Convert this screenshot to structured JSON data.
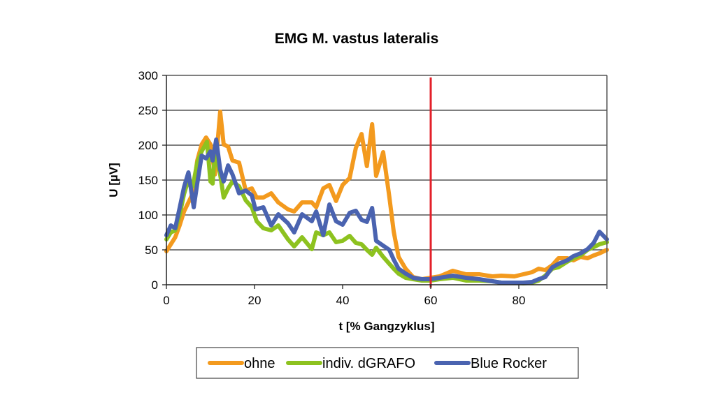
{
  "chart_data": {
    "type": "line",
    "title": "EMG M. vastus lateralis",
    "xlabel": "t [% Gangzyklus]",
    "ylabel": "U [µV]",
    "xlim": [
      0,
      100
    ],
    "ylim": [
      0,
      300
    ],
    "xticks": [
      0,
      20,
      40,
      60,
      80
    ],
    "xtick_labels": [
      "0",
      "20",
      "40",
      "60",
      "80"
    ],
    "yticks": [
      0,
      50,
      100,
      150,
      200,
      250,
      300
    ],
    "ytick_labels": [
      "0",
      "50",
      "100",
      "150",
      "200",
      "250",
      "300"
    ],
    "grid": "horizontal",
    "legend_position": "bottom",
    "annotations": [
      {
        "type": "vertical-line",
        "x": 60,
        "color": "#E3202A"
      }
    ],
    "series": [
      {
        "name": "ohne",
        "color": "#F39A1E",
        "x": [
          0,
          1,
          2,
          3,
          4,
          5,
          6,
          7,
          8,
          9,
          10,
          10.5,
          11,
          12.2,
          13,
          14,
          15,
          16.5,
          18,
          19.4,
          20.5,
          22,
          23.8,
          25.4,
          27.6,
          29,
          30.8,
          33,
          34,
          35.6,
          37,
          38.5,
          40,
          41.6,
          43,
          44.3,
          45.5,
          46.7,
          47.6,
          49.2,
          50.6,
          51.6,
          52.7,
          54.3,
          56,
          58,
          60,
          62,
          65,
          68,
          71,
          74,
          76,
          79,
          81,
          83,
          84.5,
          86,
          87.6,
          89,
          91,
          92.4,
          94,
          95.6,
          97,
          98.3,
          100
        ],
        "values": [
          48,
          58,
          68,
          85,
          105,
          118,
          131,
          178,
          201,
          211,
          201,
          181,
          158,
          248,
          201,
          198,
          178,
          175,
          135,
          138,
          125,
          125,
          131,
          118,
          108,
          105,
          118,
          118,
          111,
          138,
          143,
          120,
          143,
          153,
          196,
          216,
          170,
          230,
          156,
          190,
          126,
          76,
          40,
          23,
          11,
          8,
          10,
          12,
          20,
          15,
          15,
          12,
          13,
          12,
          15,
          18,
          23,
          21,
          28,
          38,
          38,
          35,
          40,
          38,
          42,
          45,
          50
        ]
      },
      {
        "name": "indiv. dGRAFO",
        "color": "#8DC21F",
        "x": [
          0,
          1,
          2,
          3,
          4,
          5,
          6,
          7,
          8,
          9.2,
          10,
          10.5,
          11,
          12.2,
          13,
          14,
          15,
          16.5,
          18,
          19.4,
          20.5,
          22,
          23.8,
          25.4,
          27.6,
          29,
          30.8,
          33,
          34,
          35.6,
          37,
          38.5,
          40,
          41.6,
          43,
          44.3,
          45.5,
          46.7,
          47.6,
          49.2,
          50.6,
          51.6,
          52.7,
          54.3,
          56,
          58,
          60,
          62,
          65,
          68,
          71,
          74,
          76,
          79,
          81,
          83,
          84.5,
          86,
          87.6,
          89,
          91,
          92.4,
          94,
          95.6,
          97,
          98.3,
          100
        ],
        "values": [
          65,
          75,
          78,
          100,
          130,
          151,
          141,
          175,
          191,
          205,
          148,
          145,
          191,
          158,
          125,
          138,
          148,
          141,
          121,
          111,
          91,
          81,
          78,
          85,
          65,
          55,
          68,
          51,
          75,
          71,
          75,
          61,
          63,
          70,
          60,
          58,
          50,
          43,
          53,
          40,
          30,
          23,
          16,
          10,
          8,
          6,
          6,
          8,
          10,
          6,
          6,
          5,
          3,
          3,
          2,
          3,
          6,
          13,
          23,
          25,
          33,
          38,
          42,
          50,
          54,
          58,
          61
        ]
      },
      {
        "name": "Blue Rocker",
        "color": "#4A63B0",
        "x": [
          0,
          1,
          2,
          3,
          4,
          5,
          6.2,
          7,
          8,
          9,
          10,
          10.5,
          11.3,
          12.2,
          13,
          14,
          15,
          16.5,
          18,
          19.4,
          20.2,
          22,
          23.8,
          25.4,
          27.6,
          29,
          30.8,
          33,
          34,
          35.6,
          37,
          38.5,
          40,
          41.6,
          43,
          44.3,
          45.5,
          46.7,
          47.6,
          49.2,
          50.6,
          51.6,
          52.7,
          54.3,
          56,
          58,
          60,
          62,
          65,
          68,
          71,
          74,
          76,
          79,
          81,
          83,
          84.5,
          86,
          87.6,
          89,
          91,
          92.4,
          94,
          95.6,
          97,
          98.3,
          100
        ],
        "values": [
          71,
          85,
          81,
          110,
          140,
          161,
          111,
          145,
          185,
          181,
          191,
          178,
          208,
          165,
          148,
          171,
          158,
          131,
          135,
          128,
          108,
          111,
          85,
          101,
          88,
          75,
          101,
          91,
          105,
          71,
          115,
          91,
          86,
          103,
          106,
          93,
          90,
          110,
          63,
          56,
          50,
          36,
          23,
          16,
          10,
          8,
          8,
          10,
          13,
          10,
          8,
          5,
          3,
          3,
          3,
          4,
          8,
          11,
          25,
          30,
          35,
          41,
          45,
          51,
          60,
          76,
          65
        ]
      }
    ]
  }
}
